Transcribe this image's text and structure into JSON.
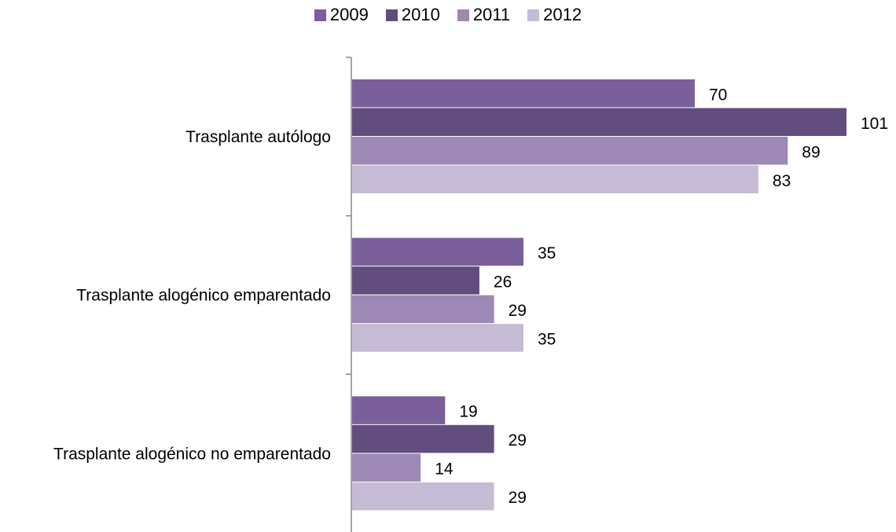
{
  "chart_data": {
    "type": "bar",
    "orientation": "horizontal",
    "categories": [
      "Trasplante autólogo",
      "Trasplante alogénico emparentado",
      "Trasplante alogénico no emparentado"
    ],
    "series": [
      {
        "name": "2009",
        "color": "#7a5f9b",
        "values": [
          70,
          35,
          19
        ]
      },
      {
        "name": "2010",
        "color": "#634c7e",
        "values": [
          101,
          26,
          29
        ]
      },
      {
        "name": "2011",
        "color": "#9d88b6",
        "values": [
          89,
          29,
          14
        ]
      },
      {
        "name": "2012",
        "color": "#c5bbd4",
        "values": [
          83,
          35,
          29
        ]
      }
    ],
    "xlim": [
      0,
      101
    ],
    "legend_position": "top-center",
    "grid": false,
    "data_labels": true
  }
}
